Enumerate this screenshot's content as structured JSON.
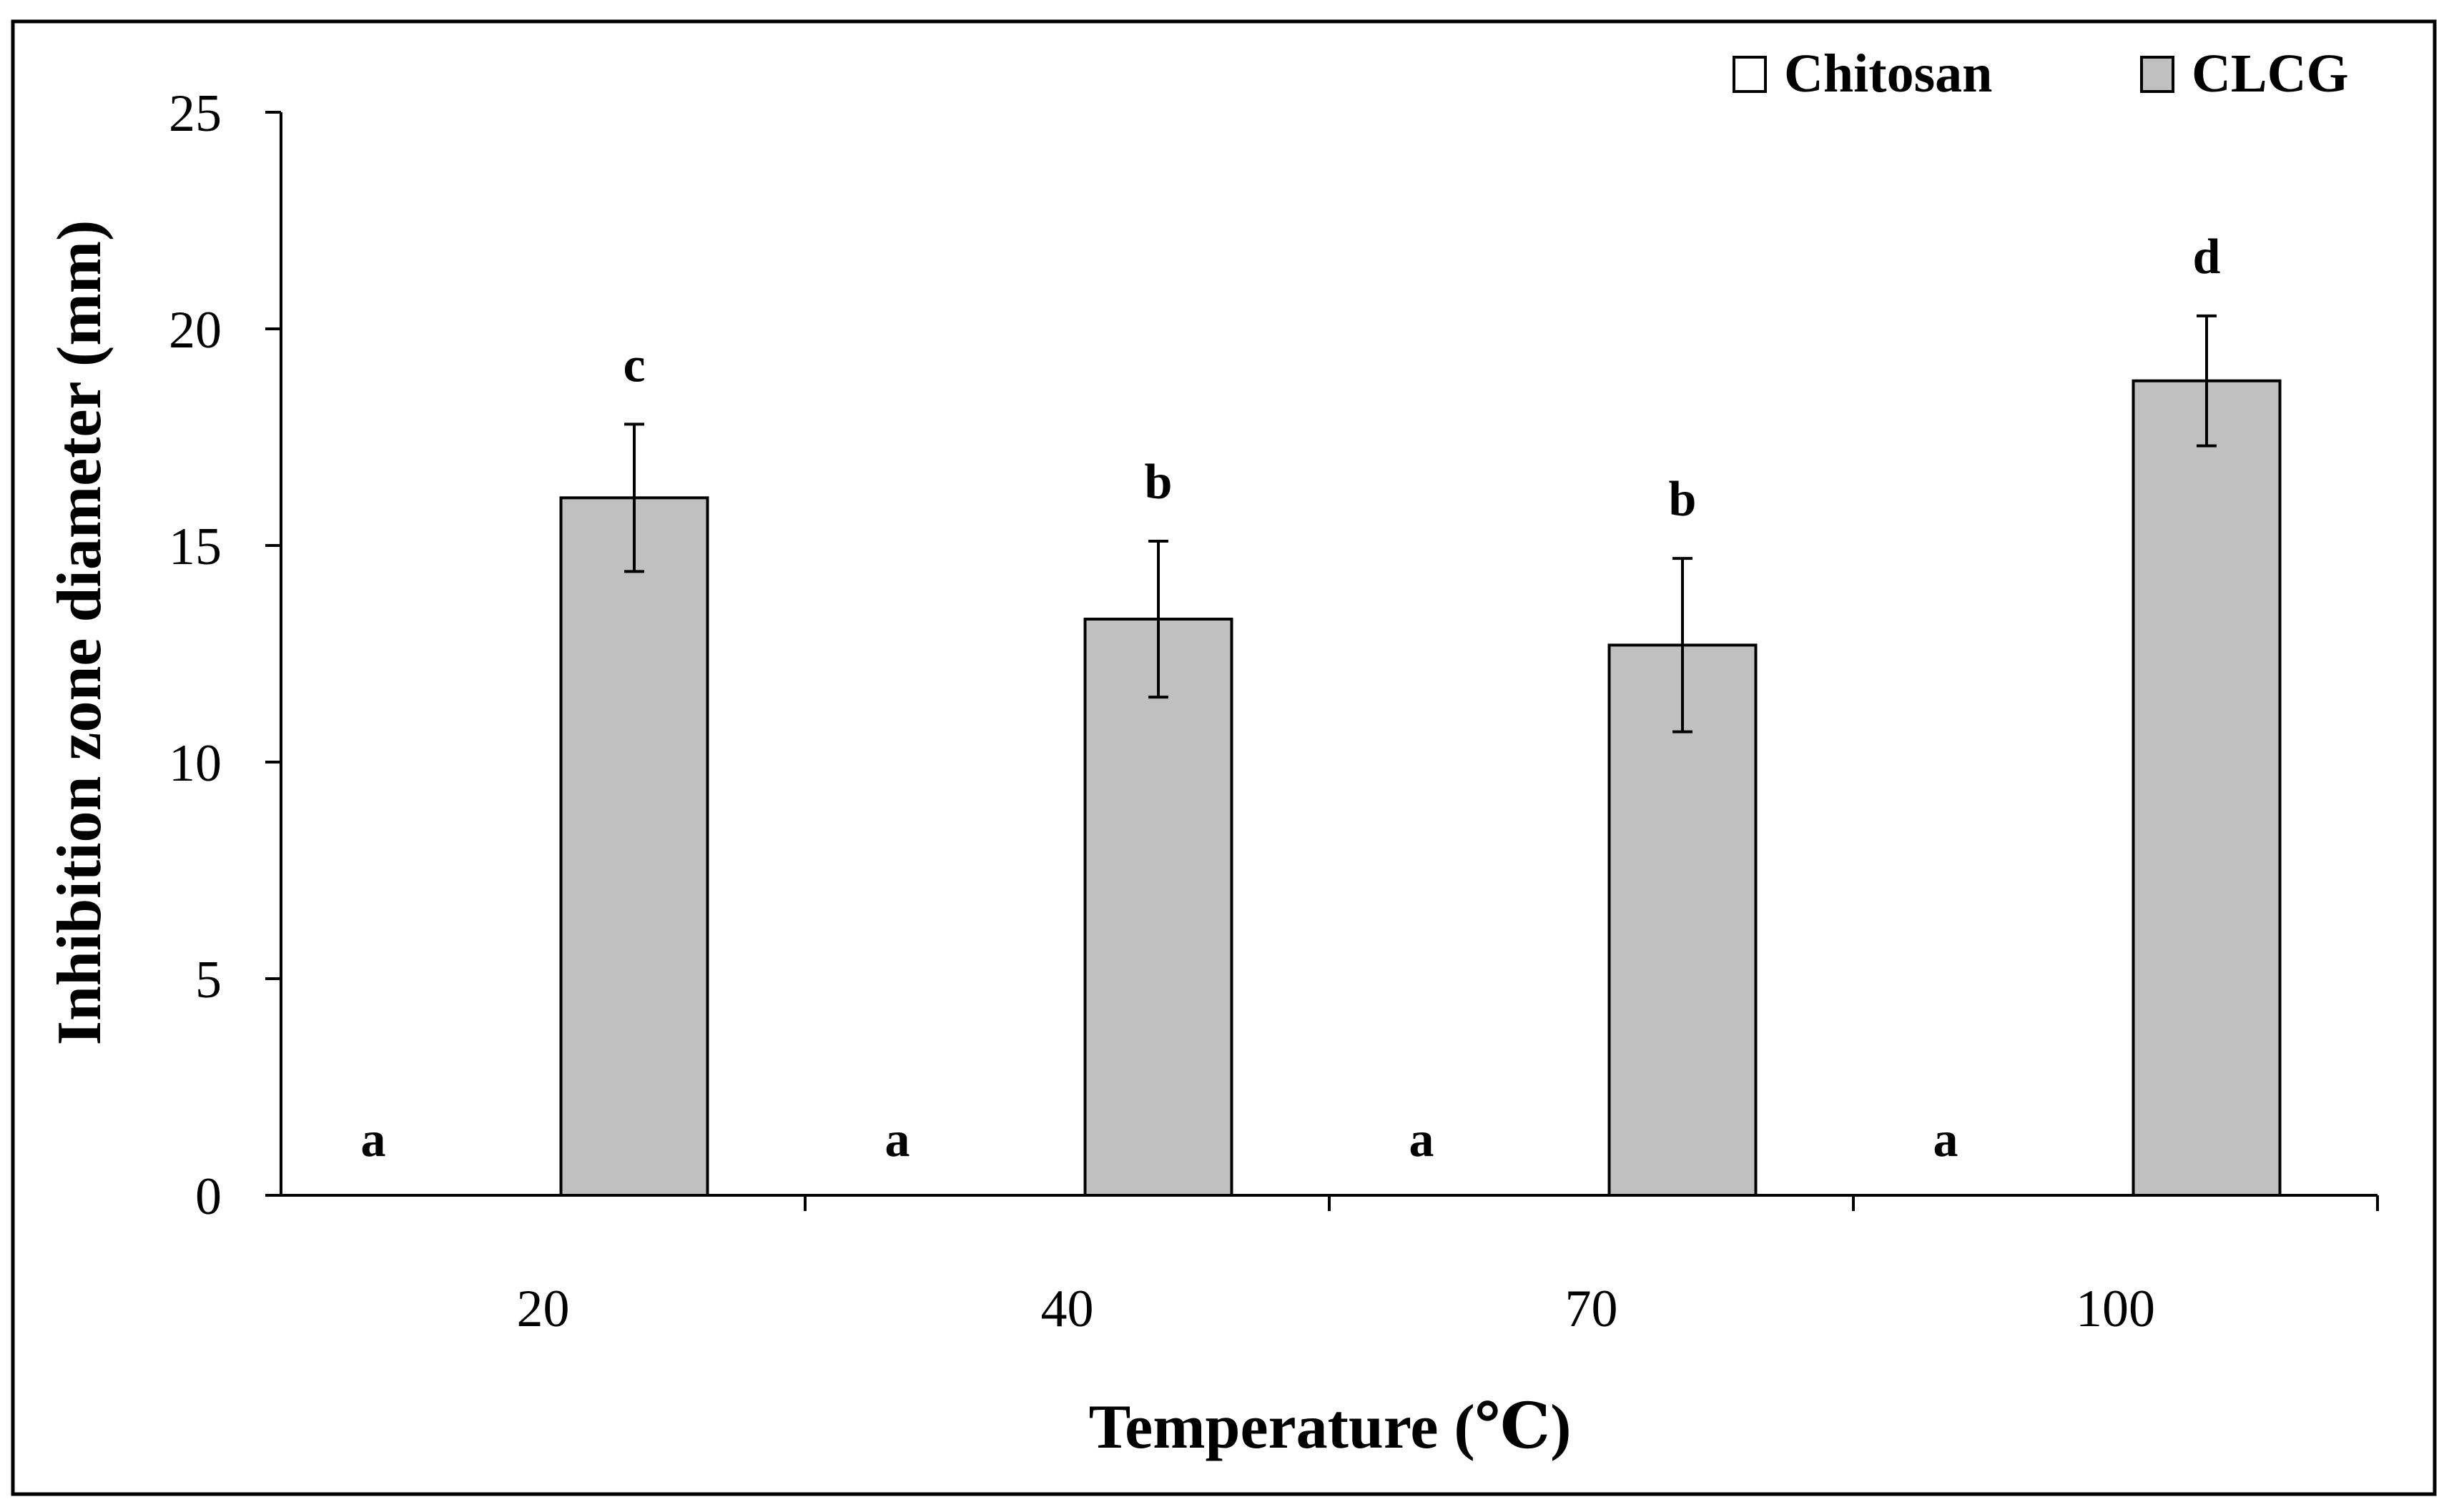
{
  "chart_data": {
    "type": "bar",
    "title": "",
    "xlabel": "Temperature (℃)",
    "ylabel": "Inhibition zone diameter (mm)",
    "ylim": [
      0,
      25
    ],
    "yticks": [
      0,
      5,
      10,
      15,
      20,
      25
    ],
    "categories": [
      "20",
      "40",
      "70",
      "100"
    ],
    "series": [
      {
        "name": "Chitosan",
        "color": "#ffffff",
        "values": [
          0,
          0,
          0,
          0
        ],
        "errors": [
          0,
          0,
          0,
          0
        ],
        "letters": [
          "a",
          "a",
          "a",
          "a"
        ]
      },
      {
        "name": "CLCG",
        "color": "#c0c0c0",
        "values": [
          16.1,
          13.3,
          12.7,
          18.8
        ],
        "errors": [
          1.7,
          1.8,
          2.0,
          1.5
        ],
        "letters": [
          "c",
          "b",
          "b",
          "d"
        ]
      }
    ],
    "legend_position": "top-right",
    "grid": false
  }
}
